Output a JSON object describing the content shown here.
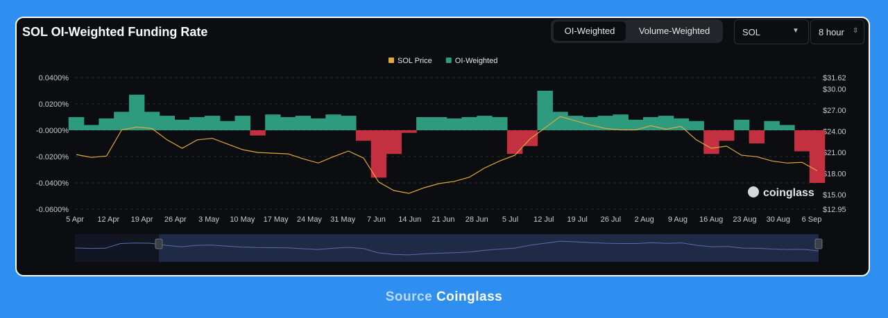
{
  "title": "SOL OI-Weighted Funding Rate",
  "toggle": {
    "active": "OI-Weighted",
    "inactive": "Volume-Weighted"
  },
  "symbol_select": {
    "value": "SOL",
    "icon": "caret-down-icon"
  },
  "interval_select": {
    "value": "8 hour",
    "icon": "updown-icon"
  },
  "watermark": "coinglass",
  "footer": {
    "prefix": "Source",
    "brand": "Coinglass"
  },
  "colors": {
    "price": "#e2a93b",
    "positive": "#2e9a7e",
    "negative": "#c3303f",
    "navigator": "#233050"
  },
  "chart_data": {
    "type": "area",
    "title": "SOL OI-Weighted Funding Rate",
    "legend": [
      {
        "name": "SOL Price",
        "color": "#e2a93b"
      },
      {
        "name": "OI-Weighted",
        "color": "#2e9a7e"
      }
    ],
    "legend_position": "top-center",
    "x_ticks": [
      "5 Apr",
      "12 Apr",
      "19 Apr",
      "26 Apr",
      "3 May",
      "10 May",
      "17 May",
      "24 May",
      "31 May",
      "7 Jun",
      "14 Jun",
      "21 Jun",
      "28 Jun",
      "5 Jul",
      "12 Jul",
      "19 Jul",
      "26 Jul",
      "2 Aug",
      "9 Aug",
      "16 Aug",
      "23 Aug",
      "30 Aug",
      "6 Sep"
    ],
    "y_left_ticks": [
      "0.0400%",
      "0.0200%",
      "-0.0000%",
      "-0.0200%",
      "-0.0400%",
      "-0.0600%"
    ],
    "y_left_range": [
      -0.06,
      0.04
    ],
    "y_right_ticks": [
      "$31.62",
      "$30.00",
      "$27.00",
      "$24.00",
      "$21.00",
      "$18.00",
      "$15.00",
      "$12.95"
    ],
    "y_right_range": [
      12.95,
      31.62
    ],
    "grid": "horizontal-dashed",
    "x": [
      "5 Apr",
      "8 Apr",
      "12 Apr",
      "15 Apr",
      "17 Apr",
      "19 Apr",
      "23 Apr",
      "26 Apr",
      "29 Apr",
      "3 May",
      "7 May",
      "10 May",
      "14 May",
      "17 May",
      "21 May",
      "24 May",
      "28 May",
      "31 May",
      "4 Jun",
      "7 Jun",
      "9 Jun",
      "11 Jun",
      "14 Jun",
      "18 Jun",
      "21 Jun",
      "25 Jun",
      "28 Jun",
      "2 Jul",
      "5 Jul",
      "8 Jul",
      "12 Jul",
      "14 Jul",
      "16 Jul",
      "19 Jul",
      "22 Jul",
      "26 Jul",
      "29 Jul",
      "2 Aug",
      "6 Aug",
      "9 Aug",
      "13 Aug",
      "16 Aug",
      "20 Aug",
      "23 Aug",
      "27 Aug",
      "30 Aug",
      "3 Sep",
      "6 Sep",
      "8 Sep",
      "9 Sep"
    ],
    "series": [
      {
        "name": "SOL Price",
        "axis": "right",
        "values": [
          20.7,
          20.3,
          20.5,
          24.2,
          24.6,
          24.4,
          22.8,
          21.6,
          22.8,
          23.0,
          22.2,
          21.4,
          21.0,
          20.9,
          20.8,
          20.1,
          19.5,
          20.4,
          21.2,
          20.2,
          16.8,
          15.6,
          15.2,
          16.0,
          16.6,
          16.9,
          17.5,
          18.8,
          19.8,
          20.6,
          22.9,
          24.5,
          26.1,
          25.5,
          24.9,
          24.4,
          24.2,
          24.2,
          24.8,
          24.3,
          24.7,
          22.8,
          21.6,
          21.9,
          20.6,
          20.4,
          19.8,
          19.5,
          19.6,
          18.4
        ]
      },
      {
        "name": "OI-Weighted",
        "axis": "left",
        "values": [
          0.01,
          0.004,
          0.009,
          0.014,
          0.027,
          0.014,
          0.011,
          0.008,
          0.01,
          0.011,
          0.007,
          0.011,
          -0.004,
          0.012,
          0.01,
          0.011,
          0.009,
          0.012,
          0.011,
          -0.008,
          -0.036,
          -0.018,
          -0.002,
          0.01,
          0.01,
          0.009,
          0.01,
          0.011,
          0.01,
          -0.018,
          -0.012,
          0.03,
          0.014,
          0.011,
          0.01,
          0.011,
          0.012,
          0.008,
          0.01,
          0.011,
          0.009,
          0.007,
          -0.018,
          -0.008,
          0.008,
          -0.01,
          0.007,
          0.004,
          -0.016,
          -0.04
        ]
      }
    ]
  }
}
